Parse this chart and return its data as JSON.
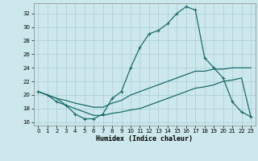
{
  "title": "",
  "xlabel": "Humidex (Indice chaleur)",
  "bg_color": "#cce8ec",
  "grid_color": "#b0d0d8",
  "line_color": "#1a6b6b",
  "xlim": [
    -0.5,
    23.5
  ],
  "ylim": [
    15.5,
    33.5
  ],
  "xticks": [
    0,
    1,
    2,
    3,
    4,
    5,
    6,
    7,
    8,
    9,
    10,
    11,
    12,
    13,
    14,
    15,
    16,
    17,
    18,
    19,
    20,
    21,
    22,
    23
  ],
  "yticks": [
    16,
    18,
    20,
    22,
    24,
    26,
    28,
    30,
    32
  ],
  "line1_x": [
    0,
    1,
    2,
    3,
    4,
    5,
    6,
    7,
    8,
    9,
    10,
    11,
    12,
    13,
    14,
    15,
    16,
    17,
    18,
    19,
    20,
    21,
    22,
    23
  ],
  "line1_y": [
    20.5,
    20.0,
    19.0,
    18.5,
    17.2,
    16.5,
    16.5,
    17.2,
    19.5,
    20.5,
    24.0,
    27.0,
    29.0,
    29.5,
    30.5,
    32.0,
    33.0,
    32.5,
    25.5,
    24.0,
    22.5,
    19.0,
    17.5,
    16.8
  ],
  "line2_x": [
    0,
    1,
    2,
    3,
    4,
    5,
    6,
    7,
    8,
    9,
    10,
    11,
    12,
    13,
    14,
    15,
    16,
    17,
    18,
    19,
    20,
    21,
    22,
    23
  ],
  "line2_y": [
    20.5,
    20.0,
    19.5,
    19.2,
    18.8,
    18.5,
    18.2,
    18.2,
    18.8,
    19.2,
    20.0,
    20.5,
    21.0,
    21.5,
    22.0,
    22.5,
    23.0,
    23.5,
    23.5,
    23.8,
    23.8,
    24.0,
    24.0,
    24.0
  ],
  "line3_x": [
    0,
    1,
    2,
    3,
    4,
    5,
    6,
    7,
    8,
    9,
    10,
    11,
    12,
    13,
    14,
    15,
    16,
    17,
    18,
    19,
    20,
    21,
    22,
    23
  ],
  "line3_y": [
    20.5,
    20.0,
    19.5,
    18.5,
    18.0,
    17.5,
    17.0,
    17.0,
    17.3,
    17.5,
    17.8,
    18.0,
    18.5,
    19.0,
    19.5,
    20.0,
    20.5,
    21.0,
    21.2,
    21.5,
    22.0,
    22.2,
    22.5,
    16.8
  ]
}
